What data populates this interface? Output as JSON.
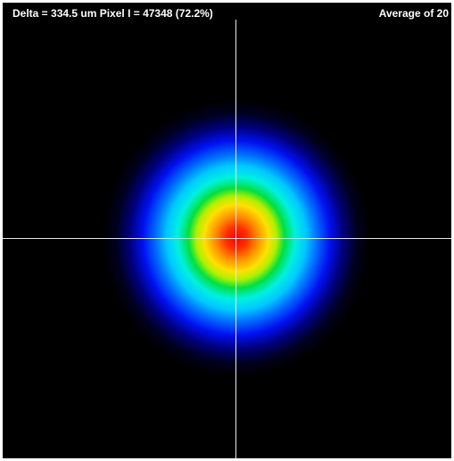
{
  "header": {
    "measurement": "Delta = 334.5 um Pixel I = 47348 (72.2%)",
    "averaging": "Average of 20"
  }
}
